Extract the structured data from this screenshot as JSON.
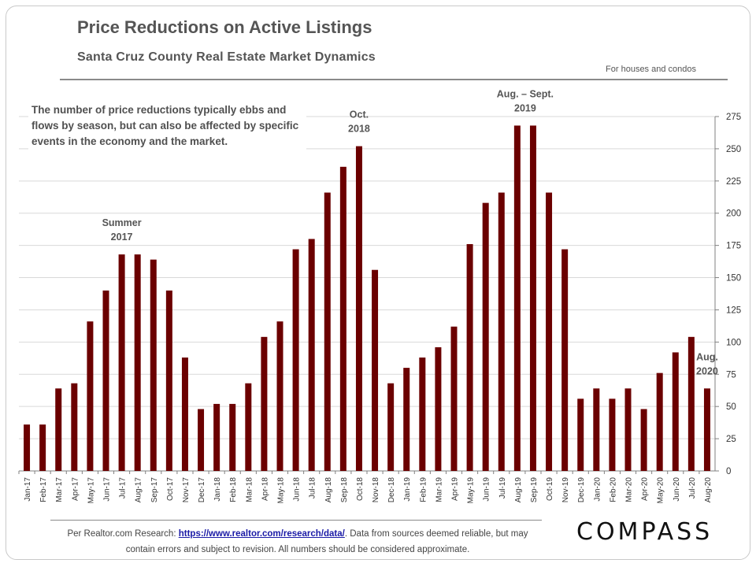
{
  "header": {
    "title": "Price Reductions on Active Listings",
    "subtitle": "Santa Cruz County Real Estate Market Dynamics",
    "note": "For houses and condos"
  },
  "description": "The number of price reductions typically ebbs and flows by season, but can also be affected by specific events in the economy and the market.",
  "footer": {
    "source_prefix": "Per Realtor.com Research: ",
    "source_link": "https://www.realtor.com/research/data/",
    "source_suffix": ". Data from sources deemed reliable, but may contain errors and subject to revision. All numbers should be considered approximate.",
    "logo": "COMPASS"
  },
  "colors": {
    "bar": "#6b0000",
    "grid": "#d9d9d9",
    "axis": "#808080"
  },
  "chart_data": {
    "type": "bar",
    "categories": [
      "Jan-17",
      "Feb-17",
      "Mar-17",
      "Apr-17",
      "May-17",
      "Jun-17",
      "Jul-17",
      "Aug-17",
      "Sep-17",
      "Oct-17",
      "Nov-17",
      "Dec-17",
      "Jan-18",
      "Feb-18",
      "Mar-18",
      "Apr-18",
      "May-18",
      "Jun-18",
      "Jul-18",
      "Aug-18",
      "Sep-18",
      "Oct-18",
      "Nov-18",
      "Dec-18",
      "Jan-19",
      "Feb-19",
      "Mar-19",
      "Apr-19",
      "May-19",
      "Jun-19",
      "Jul-19",
      "Aug-19",
      "Sep-19",
      "Oct-19",
      "Nov-19",
      "Dec-19",
      "Jan-20",
      "Feb-20",
      "Mar-20",
      "Apr-20",
      "May-20",
      "Jun-20",
      "Jul-20",
      "Aug-20"
    ],
    "values": [
      36,
      36,
      64,
      68,
      116,
      140,
      168,
      168,
      164,
      140,
      88,
      48,
      52,
      52,
      68,
      104,
      116,
      172,
      180,
      216,
      236,
      252,
      156,
      68,
      80,
      88,
      96,
      112,
      176,
      208,
      216,
      268,
      268,
      216,
      172,
      56,
      64,
      56,
      64,
      48,
      76,
      92,
      104,
      64
    ],
    "ylim": [
      0,
      275
    ],
    "yticks": [
      0,
      25,
      50,
      75,
      100,
      125,
      150,
      175,
      200,
      225,
      250,
      275
    ],
    "y_axis_side": "right",
    "grid": true,
    "annotations": [
      {
        "lines": [
          "Summer",
          "2017"
        ],
        "category": "Aug-17"
      },
      {
        "lines": [
          "Oct.",
          "2018"
        ],
        "category": "Oct-18"
      },
      {
        "lines": [
          "Aug. – Sept.",
          "2019"
        ],
        "category": "Aug-19"
      },
      {
        "lines": [
          "Aug.",
          "2020"
        ],
        "category": "Aug-20"
      }
    ]
  }
}
